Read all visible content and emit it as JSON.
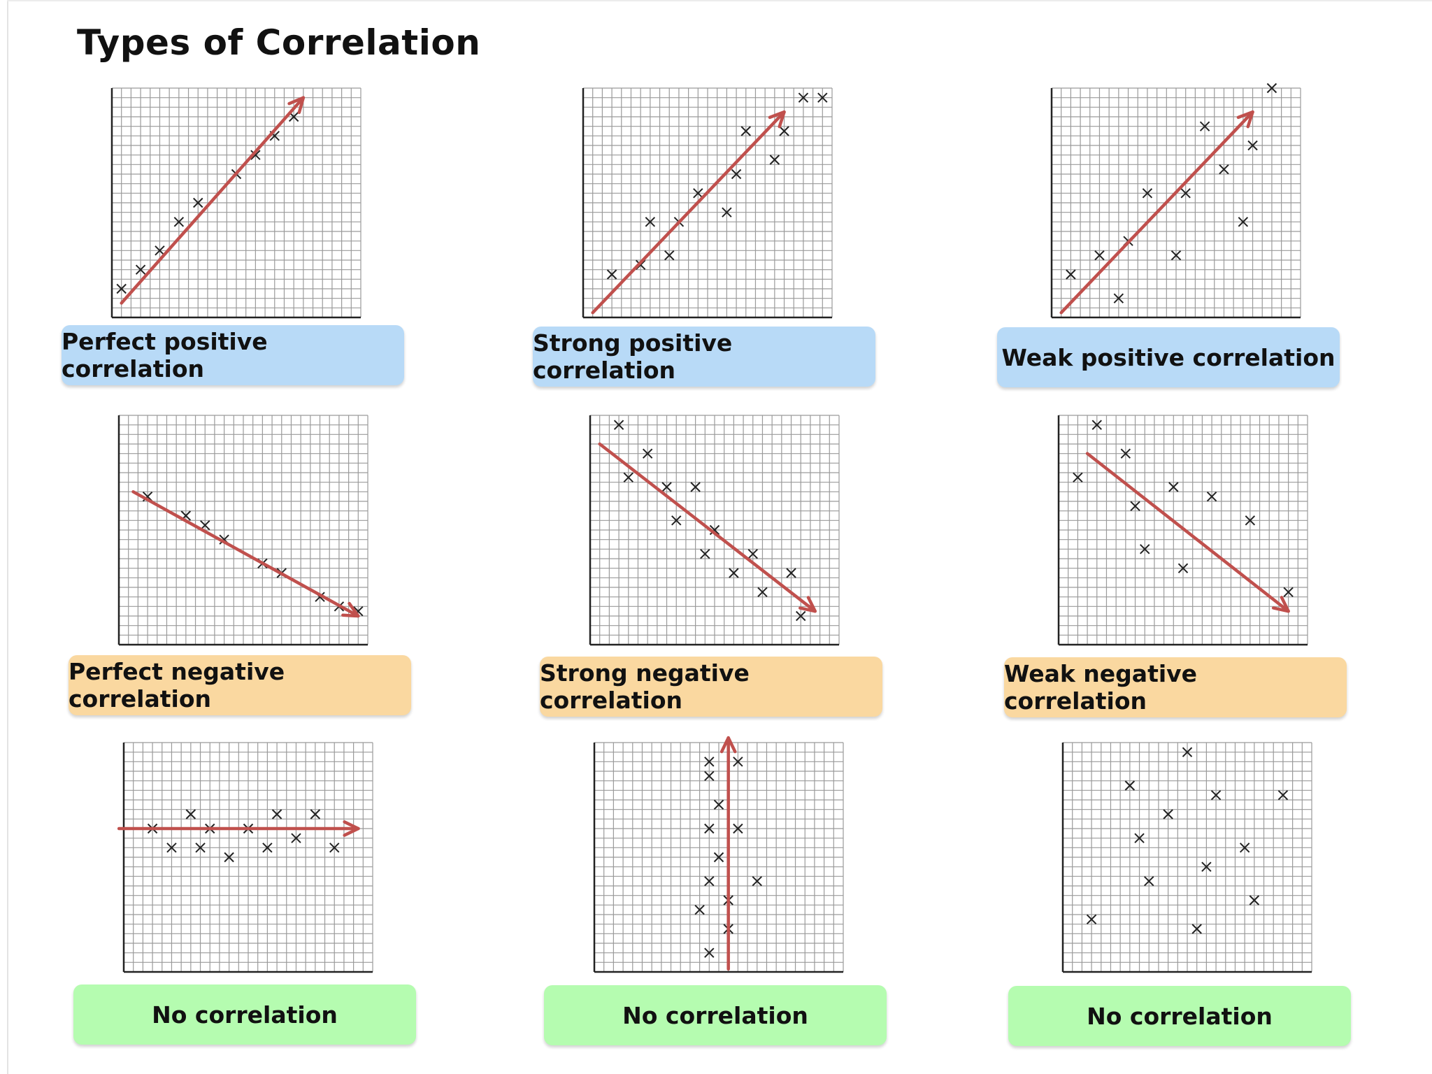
{
  "title": "Types of Correlation",
  "colors": {
    "grid_line": "#9a9a9a",
    "axis": "#222222",
    "marker": "#222222",
    "arrow": "#c0504d",
    "caption_positive": "#b8daf7",
    "caption_negative": "#fad8a0",
    "caption_none": "#b5fcb0"
  },
  "chart_data": [
    {
      "type": "scatter",
      "title": "Perfect positive correlation",
      "category": "positive",
      "xlim": [
        0,
        26
      ],
      "ylim": [
        0,
        24
      ],
      "points": [
        [
          1,
          3
        ],
        [
          3,
          5
        ],
        [
          5,
          7
        ],
        [
          7,
          10
        ],
        [
          9,
          12
        ],
        [
          13,
          15
        ],
        [
          15,
          17
        ],
        [
          17,
          19
        ],
        [
          19,
          21
        ]
      ],
      "trend": {
        "from": [
          1,
          1.5
        ],
        "to": [
          20,
          23
        ]
      }
    },
    {
      "type": "scatter",
      "title": "Strong positive correlation",
      "category": "positive",
      "xlim": [
        0,
        26
      ],
      "ylim": [
        0,
        24
      ],
      "points": [
        [
          3,
          4.5
        ],
        [
          6,
          5.5
        ],
        [
          7,
          10
        ],
        [
          9,
          6.5
        ],
        [
          10,
          10
        ],
        [
          12,
          13
        ],
        [
          15,
          11
        ],
        [
          16,
          15
        ],
        [
          17,
          19.5
        ],
        [
          20,
          16.5
        ],
        [
          21,
          19.5
        ],
        [
          23,
          23
        ],
        [
          25,
          23
        ]
      ],
      "trend": {
        "from": [
          1,
          0.5
        ],
        "to": [
          21,
          21.5
        ]
      }
    },
    {
      "type": "scatter",
      "title": "Weak positive correlation",
      "category": "positive",
      "xlim": [
        0,
        26
      ],
      "ylim": [
        0,
        24
      ],
      "points": [
        [
          2,
          4.5
        ],
        [
          5,
          6.5
        ],
        [
          7,
          2
        ],
        [
          8,
          8
        ],
        [
          10,
          13
        ],
        [
          13,
          6.5
        ],
        [
          14,
          13
        ],
        [
          16,
          20
        ],
        [
          18,
          15.5
        ],
        [
          20,
          10
        ],
        [
          21,
          18
        ],
        [
          23,
          24
        ]
      ],
      "trend": {
        "from": [
          1,
          0.5
        ],
        "to": [
          21,
          21.5
        ]
      }
    },
    {
      "type": "scatter",
      "title": "Perfect negative correlation",
      "category": "negative",
      "xlim": [
        0,
        26
      ],
      "ylim": [
        0,
        24
      ],
      "points": [
        [
          3,
          15.5
        ],
        [
          7,
          13.5
        ],
        [
          9,
          12.5
        ],
        [
          11,
          11
        ],
        [
          15,
          8.5
        ],
        [
          17,
          7.5
        ],
        [
          21,
          5
        ],
        [
          23,
          4
        ],
        [
          25,
          3.5
        ]
      ],
      "trend": {
        "from": [
          1.5,
          16
        ],
        "to": [
          25,
          3
        ]
      }
    },
    {
      "type": "scatter",
      "title": "Strong negative correlation",
      "category": "negative",
      "xlim": [
        0,
        26
      ],
      "ylim": [
        0,
        24
      ],
      "points": [
        [
          3,
          23
        ],
        [
          4,
          17.5
        ],
        [
          6,
          20
        ],
        [
          8,
          16.5
        ],
        [
          9,
          13
        ],
        [
          11,
          16.5
        ],
        [
          12,
          9.5
        ],
        [
          13,
          12
        ],
        [
          15,
          7.5
        ],
        [
          17,
          9.5
        ],
        [
          18,
          5.5
        ],
        [
          21,
          7.5
        ],
        [
          22,
          3
        ]
      ],
      "trend": {
        "from": [
          1,
          21
        ],
        "to": [
          23.5,
          3.5
        ]
      }
    },
    {
      "type": "scatter",
      "title": "Weak negative correlation",
      "category": "negative",
      "xlim": [
        0,
        26
      ],
      "ylim": [
        0,
        24
      ],
      "points": [
        [
          2,
          17.5
        ],
        [
          4,
          23
        ],
        [
          7,
          20
        ],
        [
          8,
          14.5
        ],
        [
          9,
          10
        ],
        [
          12,
          16.5
        ],
        [
          13,
          8
        ],
        [
          16,
          15.5
        ],
        [
          20,
          13
        ],
        [
          24,
          5.5
        ]
      ],
      "trend": {
        "from": [
          3,
          20
        ],
        "to": [
          24,
          3.5
        ]
      }
    },
    {
      "type": "scatter",
      "title": "No correlation",
      "category": "none",
      "xlim": [
        0,
        26
      ],
      "ylim": [
        0,
        24
      ],
      "points": [
        [
          3,
          15
        ],
        [
          5,
          13
        ],
        [
          7,
          16.5
        ],
        [
          8,
          13
        ],
        [
          9,
          15
        ],
        [
          11,
          12
        ],
        [
          13,
          15
        ],
        [
          15,
          13
        ],
        [
          16,
          16.5
        ],
        [
          18,
          14
        ],
        [
          20,
          16.5
        ],
        [
          22,
          13
        ]
      ],
      "trend": {
        "from": [
          -0.5,
          15
        ],
        "to": [
          24.5,
          15
        ]
      }
    },
    {
      "type": "scatter",
      "title": "No correlation",
      "category": "none",
      "xlim": [
        0,
        26
      ],
      "ylim": [
        0,
        24
      ],
      "points": [
        [
          12,
          20.5
        ],
        [
          13,
          17.5
        ],
        [
          12,
          15
        ],
        [
          12,
          22
        ],
        [
          15,
          22
        ],
        [
          15,
          15
        ],
        [
          13,
          12
        ],
        [
          12,
          9.5
        ],
        [
          17,
          9.5
        ],
        [
          11,
          6.5
        ],
        [
          14,
          7.5
        ],
        [
          14,
          4.5
        ],
        [
          12,
          2
        ]
      ],
      "trend": {
        "from": [
          14,
          0.3
        ],
        "to": [
          14,
          24.5
        ]
      }
    },
    {
      "type": "scatter",
      "title": "No correlation",
      "category": "none",
      "xlim": [
        0,
        26
      ],
      "ylim": [
        0,
        24
      ],
      "points": [
        [
          3,
          5.5
        ],
        [
          7,
          19.5
        ],
        [
          8,
          14
        ],
        [
          9,
          9.5
        ],
        [
          11,
          16.5
        ],
        [
          13,
          23
        ],
        [
          15,
          11
        ],
        [
          14,
          4.5
        ],
        [
          16,
          18.5
        ],
        [
          19,
          13
        ],
        [
          20,
          7.5
        ],
        [
          23,
          18.5
        ]
      ],
      "trend": null
    }
  ],
  "captions": [
    "Perfect positive correlation",
    "Strong positive correlation",
    "Weak positive correlation",
    "Perfect negative correlation",
    "Strong negative correlation",
    "Weak negative correlation",
    "No correlation",
    "No correlation",
    "No correlation"
  ]
}
